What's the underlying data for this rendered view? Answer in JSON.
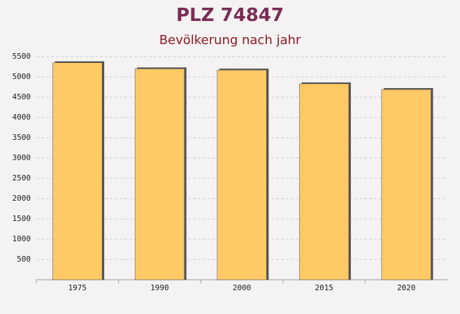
{
  "chart_data": {
    "type": "bar",
    "title": "PLZ 74847",
    "subtitle": "Bevölkerung nach jahr",
    "categories": [
      "1975",
      "1990",
      "2000",
      "2015",
      "2020"
    ],
    "values": [
      5350,
      5200,
      5170,
      4830,
      4690
    ],
    "color": "#ffc966",
    "ylim": [
      0,
      5500
    ],
    "yticks": [
      500,
      1000,
      1500,
      2000,
      2500,
      3000,
      3500,
      4000,
      4500,
      5000,
      5500
    ],
    "grid": true
  }
}
